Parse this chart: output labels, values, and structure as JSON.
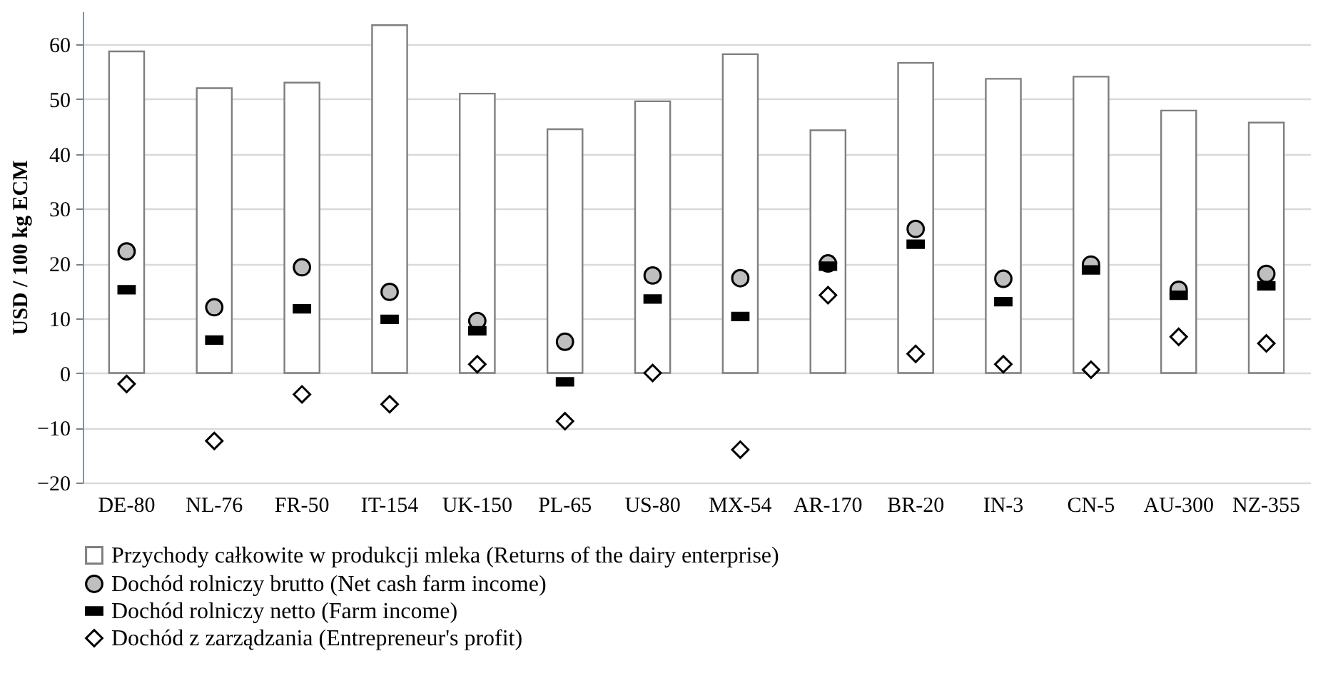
{
  "chart_data": {
    "type": "bar",
    "ylabel": "USD / 100 kg ECM",
    "categories": [
      "DE-80",
      "NL-76",
      "FR-50",
      "IT-154",
      "UK-150",
      "PL-65",
      "US-80",
      "MX-54",
      "AR-170",
      "BR-20",
      "IN-3",
      "CN-5",
      "AU-300",
      "NZ-355"
    ],
    "series": [
      {
        "name": "Przychody całkowite w produkcji mleka (Returns of the dairy enterprise)",
        "type": "bar",
        "color": "#ffffff",
        "values": [
          58.7,
          52,
          53,
          63.5,
          51,
          44.5,
          49.6,
          58.2,
          44.3,
          56.6,
          53.7,
          54.1,
          47.9,
          45.7
        ]
      },
      {
        "name": "Dochód rolniczy brutto (Net cash farm income)",
        "type": "scatter",
        "marker": "circle",
        "color": "#bfbfbf",
        "values": [
          22.2,
          12,
          19.3,
          14.8,
          9.5,
          5.7,
          17.8,
          17.3,
          20,
          26.3,
          17.2,
          19.8,
          15.2,
          18.1
        ]
      },
      {
        "name": "Dochód rolniczy netto (Farm income)",
        "type": "scatter",
        "color": "#000000",
        "values": [
          15.2,
          6,
          11.7,
          9.8,
          7.7,
          -1.6,
          13.5,
          10.3,
          19.5,
          23.5,
          13,
          18.8,
          14.2,
          15.9
        ]
      },
      {
        "name": "Dochód z zarządzania (Entrepreneur's profit)",
        "type": "scatter",
        "marker": "diamond",
        "color": "#ffffff",
        "values": [
          -2,
          -12.4,
          -3.9,
          -5.7,
          1.6,
          -8.8,
          0,
          -14,
          14.2,
          3.5,
          1.6,
          0.6,
          6.6,
          5.4
        ]
      }
    ],
    "ylim": [
      -20,
      66
    ],
    "yticks": [
      -20,
      -10,
      0,
      10,
      20,
      30,
      40,
      50,
      60
    ],
    "grid": "y",
    "legend": "bottom left"
  }
}
